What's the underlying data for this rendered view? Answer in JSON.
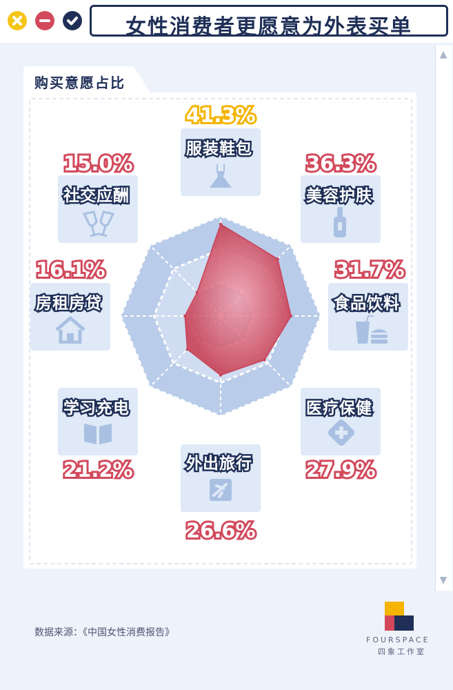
{
  "title": "女性消费者更愿意为外表买单",
  "section_tab": "购买意愿占比",
  "footer": {
    "source": "数据来源：《中国女性消费报告》",
    "brand": "FOURSPACE",
    "brand_cn": "四象工作室"
  },
  "colors": {
    "navy": "#1f2f57",
    "red": "#d2495c",
    "gold": "#f4b400",
    "tile": "#dfe9f7"
  },
  "chart_data": {
    "type": "radar",
    "series": [
      {
        "values": [
          41.3,
          36.3,
          31.7,
          27.9,
          26.6,
          21.2,
          16.1,
          15.0
        ]
      }
    ],
    "categories": [
      "服装鞋包",
      "美容护肤",
      "食品饮料",
      "医疗保健",
      "外出旅行",
      "学习充电",
      "房租房贷",
      "社交应酬"
    ],
    "values": [
      41.3,
      36.3,
      31.7,
      27.9,
      26.6,
      21.2,
      16.1,
      15.0
    ],
    "labels": [
      "41.3%",
      "36.3%",
      "31.7%",
      "27.9%",
      "26.6%",
      "21.2%",
      "16.1%",
      "15.0%"
    ],
    "icons": [
      "dress-icon",
      "bottle-icon",
      "drink-burger-icon",
      "medical-cross-icon",
      "plane-icon",
      "book-icon",
      "house-icon",
      "wine-glasses-icon"
    ],
    "rmax": 45,
    "rings": 3
  }
}
